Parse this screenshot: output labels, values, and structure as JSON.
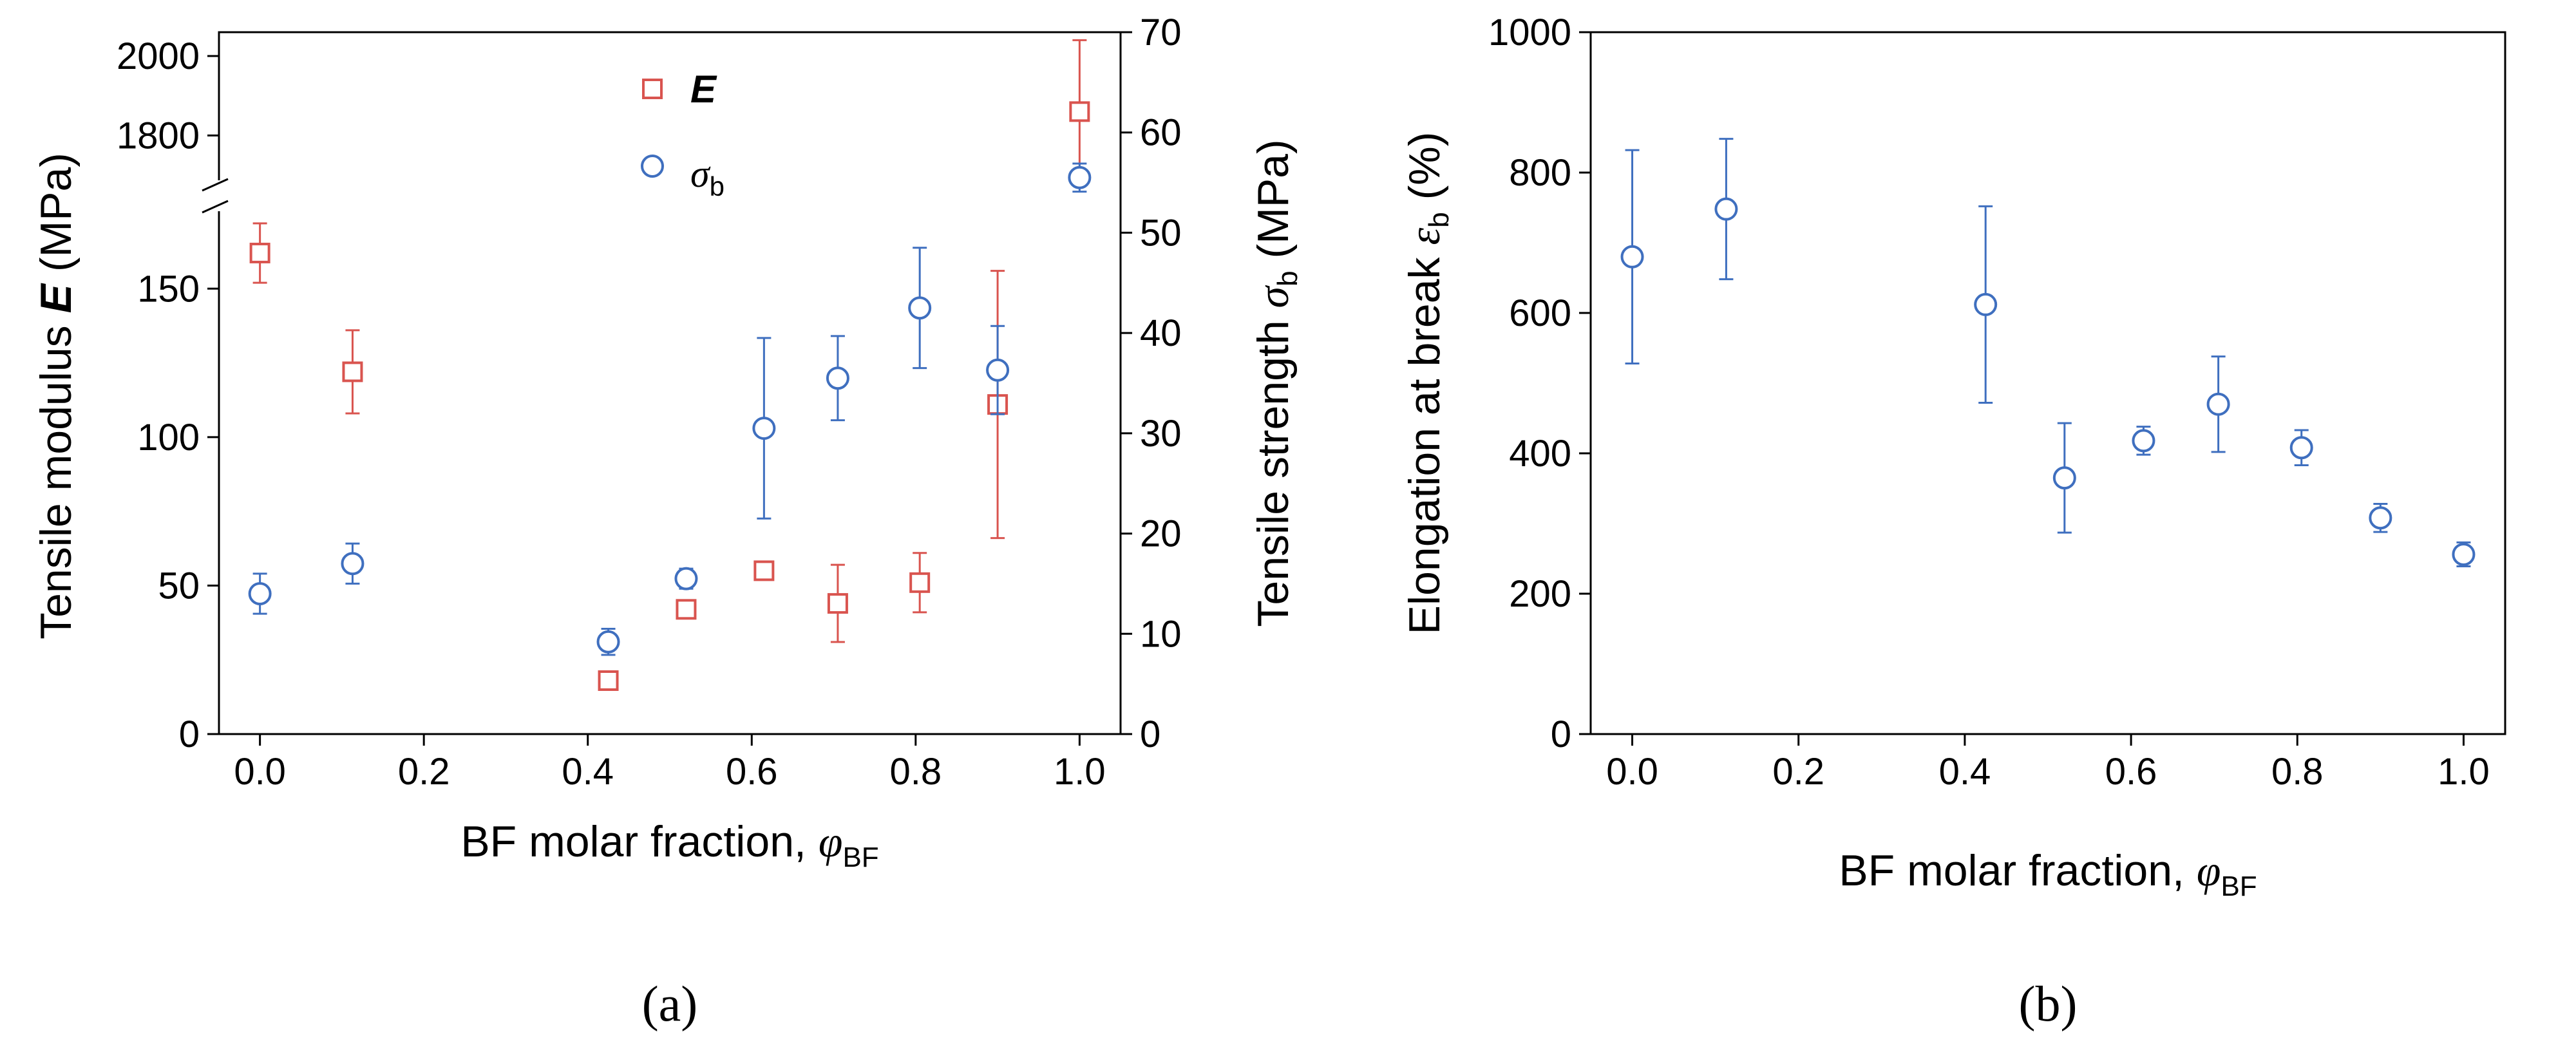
{
  "chart_data": [
    {
      "panel": "(a)",
      "type": "scatter",
      "xlabel": "BF molar fraction, ",
      "xlabel_symbol": "φ",
      "xlabel_sub": "BF",
      "xlim": [
        -0.05,
        1.05
      ],
      "x_ticks": [
        "0.0",
        "0.2",
        "0.4",
        "0.6",
        "0.8",
        "1.0"
      ],
      "y_left": {
        "label": "Tensile modulus ",
        "symbol": "E",
        "unit": " (MPa)",
        "lower_range": [
          0,
          175
        ],
        "lower_ticks": [
          "0",
          "50",
          "100",
          "150"
        ],
        "upper_range": [
          1700,
          2060
        ],
        "upper_ticks": [
          "1800",
          "2000"
        ],
        "axis_break": true
      },
      "y_right": {
        "label": "Tensile strength ",
        "symbol": "σ",
        "symbol_sub": "b",
        "unit": " (MPa)",
        "range": [
          0,
          70
        ],
        "ticks": [
          "0",
          "10",
          "20",
          "30",
          "40",
          "50",
          "60",
          "70"
        ]
      },
      "legend": [
        {
          "label": "E",
          "marker": "square",
          "color": "#d9544f"
        },
        {
          "label": "σ",
          "label_sub": "b",
          "marker": "circle",
          "color": "#3f6fbf"
        }
      ],
      "series": [
        {
          "name": "E",
          "axis": "left",
          "marker": "square",
          "color": "#d9544f",
          "x": [
            0.0,
            0.113,
            0.425,
            0.52,
            0.615,
            0.705,
            0.805,
            0.9,
            1.0
          ],
          "y": [
            162,
            122,
            18,
            42,
            55,
            44,
            51,
            111,
            1860
          ],
          "err": [
            10,
            14,
            2,
            3,
            2,
            13,
            10,
            45,
            180
          ]
        },
        {
          "name": "σb",
          "axis": "right",
          "marker": "circle",
          "color": "#3f6fbf",
          "x": [
            0.0,
            0.113,
            0.425,
            0.52,
            0.615,
            0.705,
            0.805,
            0.9,
            1.0
          ],
          "y": [
            14,
            17,
            9.2,
            15.5,
            30.5,
            35.5,
            42.5,
            36.3,
            55.5
          ],
          "err": [
            2,
            2,
            1.3,
            1,
            9,
            4.2,
            6,
            4.4,
            1.4
          ]
        }
      ]
    },
    {
      "panel": "(b)",
      "type": "scatter",
      "xlabel": "BF molar fraction, ",
      "xlabel_symbol": "φ",
      "xlabel_sub": "BF",
      "xlim": [
        -0.05,
        1.05
      ],
      "x_ticks": [
        "0.0",
        "0.2",
        "0.4",
        "0.6",
        "0.8",
        "1.0"
      ],
      "ylabel": "Elongation at break  ",
      "ylabel_symbol": "ε",
      "ylabel_sub": "b",
      "ylabel_unit": "  (%)",
      "ylim": [
        0,
        1000
      ],
      "y_ticks": [
        "0",
        "200",
        "400",
        "600",
        "800",
        "1000"
      ],
      "series": [
        {
          "name": "εb",
          "marker": "circle",
          "color": "#3f6fbf",
          "x": [
            0.0,
            0.113,
            0.425,
            0.52,
            0.615,
            0.705,
            0.805,
            0.9,
            1.0
          ],
          "y": [
            680,
            748,
            612,
            365,
            418,
            470,
            408,
            308,
            256
          ],
          "err": [
            152,
            100,
            140,
            78,
            20,
            68,
            25,
            20,
            17
          ]
        }
      ]
    }
  ]
}
